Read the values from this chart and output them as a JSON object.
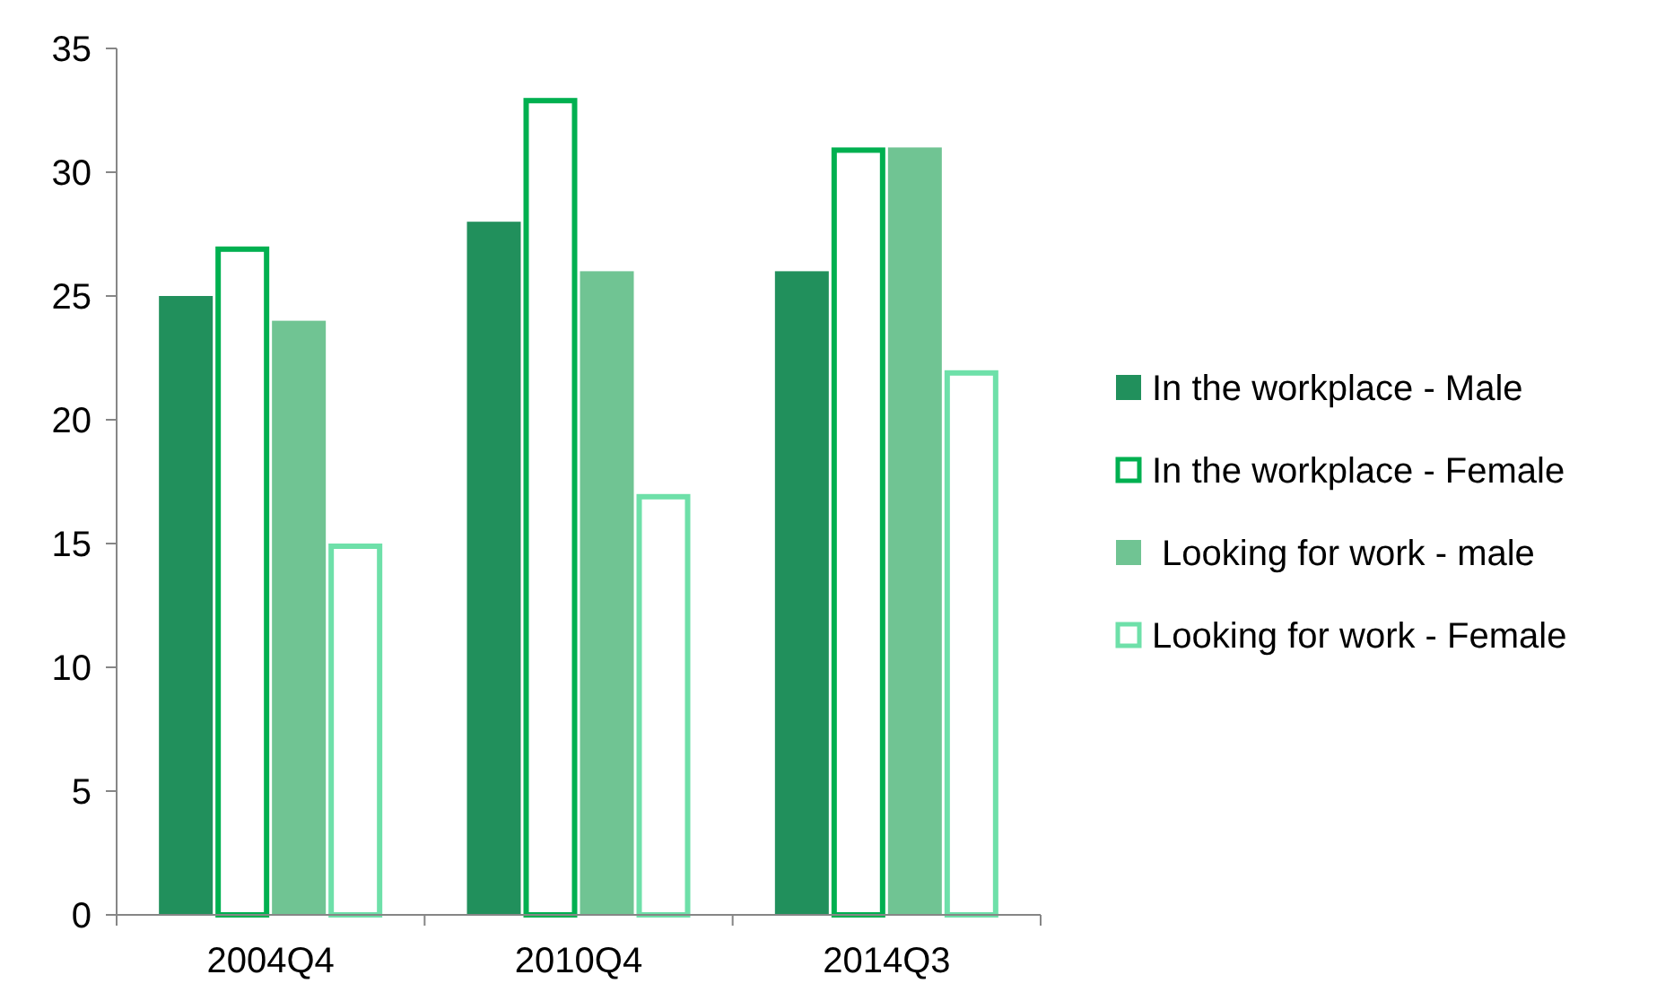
{
  "chart_data": {
    "type": "bar",
    "categories": [
      "2004Q4",
      "2010Q4",
      "2014Q3"
    ],
    "series": [
      {
        "name": "In the workplace - Male",
        "color": "#21905c",
        "values": [
          25,
          28,
          26
        ]
      },
      {
        "name": "In the workplace - Female",
        "color": "#00b050",
        "line_style": "solid",
        "values": [
          27,
          33,
          31
        ]
      },
      {
        "name": " Looking for work - male",
        "color": "#70c493",
        "values": [
          24,
          26,
          31
        ]
      },
      {
        "name": "Looking for work - Female",
        "color": "#6ee0a9",
        "line_style": "solid",
        "values": [
          15,
          17,
          22
        ]
      }
    ],
    "ylim": [
      0,
      35
    ],
    "yticks": [
      0,
      5,
      10,
      15,
      20,
      25,
      30,
      35
    ],
    "legend": "right",
    "grid": false
  }
}
